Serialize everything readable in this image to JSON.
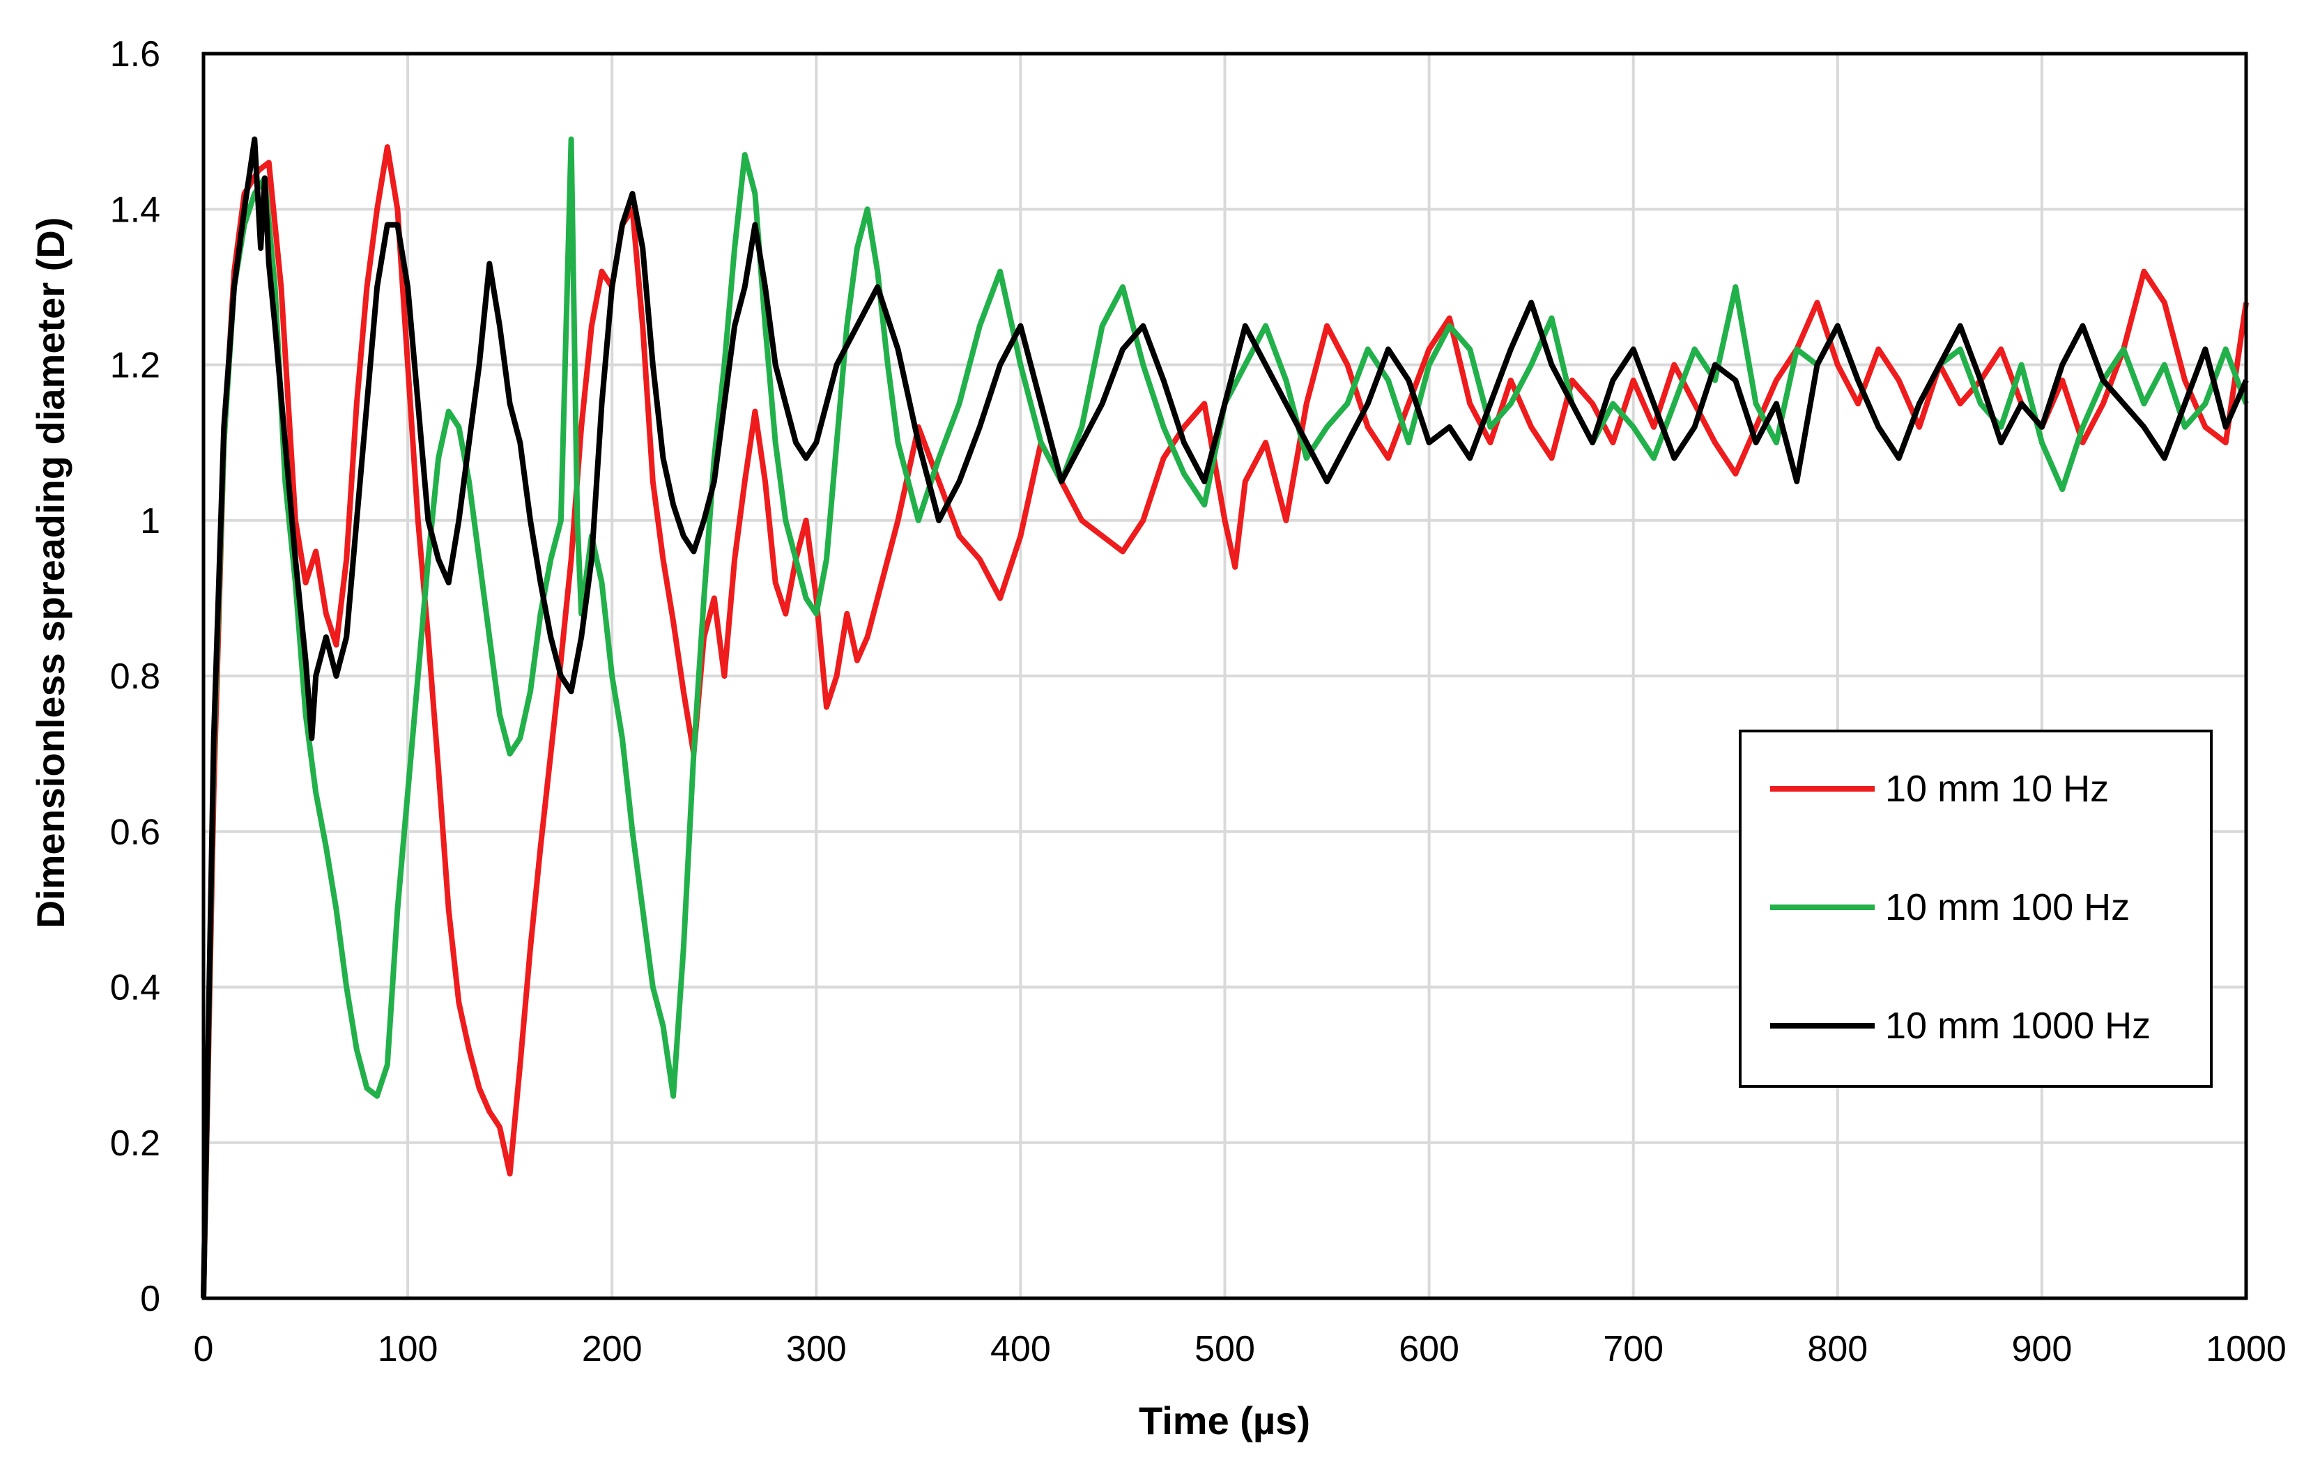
{
  "chart_data": {
    "type": "line",
    "title": "",
    "xlabel": "Time (µs)",
    "ylabel": "Dimensionless spreading diameter (D)",
    "xlim": [
      0,
      1000
    ],
    "ylim": [
      0,
      1.6
    ],
    "x_ticks": [
      0,
      100,
      200,
      300,
      400,
      500,
      600,
      700,
      800,
      900,
      1000
    ],
    "y_ticks": [
      0,
      0.2,
      0.4,
      0.6,
      0.8,
      1,
      1.2,
      1.4,
      1.6
    ],
    "x_tick_labels": [
      "0",
      "100",
      "200",
      "300",
      "400",
      "500",
      "600",
      "700",
      "800",
      "900",
      "1000"
    ],
    "y_tick_labels": [
      "0",
      "0.2",
      "0.4",
      "0.6",
      "0.8",
      "1",
      "1.2",
      "1.4",
      "1.6"
    ],
    "grid": true,
    "legend_position": "right-middle",
    "series": [
      {
        "name": "10 mm 10 Hz",
        "color": "#ee1c1c",
        "x": [
          0,
          5,
          10,
          15,
          20,
          27,
          32,
          38,
          45,
          50,
          55,
          60,
          65,
          70,
          75,
          80,
          85,
          90,
          95,
          100,
          105,
          110,
          115,
          120,
          125,
          130,
          135,
          140,
          145,
          150,
          155,
          160,
          165,
          170,
          175,
          180,
          185,
          190,
          195,
          200,
          205,
          210,
          215,
          220,
          225,
          230,
          235,
          240,
          245,
          250,
          255,
          260,
          265,
          270,
          275,
          280,
          285,
          290,
          295,
          300,
          305,
          310,
          315,
          320,
          325,
          330,
          340,
          350,
          360,
          370,
          380,
          390,
          400,
          410,
          420,
          430,
          440,
          450,
          460,
          470,
          480,
          490,
          500,
          505,
          510,
          520,
          530,
          540,
          550,
          560,
          570,
          580,
          590,
          600,
          610,
          620,
          630,
          640,
          650,
          660,
          670,
          680,
          690,
          700,
          710,
          720,
          730,
          740,
          750,
          760,
          770,
          780,
          790,
          800,
          810,
          820,
          830,
          840,
          850,
          860,
          870,
          880,
          890,
          900,
          910,
          920,
          930,
          940,
          950,
          960,
          970,
          980,
          990,
          1000
        ],
        "y": [
          0,
          0.65,
          1.1,
          1.32,
          1.42,
          1.45,
          1.46,
          1.3,
          1.0,
          0.92,
          0.96,
          0.88,
          0.84,
          0.95,
          1.15,
          1.3,
          1.4,
          1.48,
          1.4,
          1.2,
          1.0,
          0.85,
          0.68,
          0.5,
          0.38,
          0.32,
          0.27,
          0.24,
          0.22,
          0.16,
          0.3,
          0.45,
          0.58,
          0.7,
          0.82,
          0.95,
          1.12,
          1.25,
          1.32,
          1.3,
          1.38,
          1.4,
          1.25,
          1.05,
          0.95,
          0.87,
          0.78,
          0.7,
          0.85,
          0.9,
          0.8,
          0.95,
          1.05,
          1.14,
          1.05,
          0.92,
          0.88,
          0.95,
          1.0,
          0.9,
          0.76,
          0.8,
          0.88,
          0.82,
          0.85,
          0.9,
          1.0,
          1.12,
          1.05,
          0.98,
          0.95,
          0.9,
          0.98,
          1.1,
          1.05,
          1.0,
          0.98,
          0.96,
          1.0,
          1.08,
          1.12,
          1.15,
          1.0,
          0.94,
          1.05,
          1.1,
          1.0,
          1.15,
          1.25,
          1.2,
          1.12,
          1.08,
          1.15,
          1.22,
          1.26,
          1.15,
          1.1,
          1.18,
          1.12,
          1.08,
          1.18,
          1.15,
          1.1,
          1.18,
          1.12,
          1.2,
          1.15,
          1.1,
          1.06,
          1.12,
          1.18,
          1.22,
          1.28,
          1.2,
          1.15,
          1.22,
          1.18,
          1.12,
          1.2,
          1.15,
          1.18,
          1.22,
          1.15,
          1.12,
          1.18,
          1.1,
          1.15,
          1.22,
          1.32,
          1.28,
          1.18,
          1.12,
          1.1,
          1.28
        ]
      },
      {
        "name": "10 mm 100 Hz",
        "color": "#22b04a",
        "x": [
          0,
          5,
          10,
          15,
          20,
          25,
          30,
          35,
          40,
          45,
          50,
          55,
          60,
          65,
          70,
          75,
          80,
          85,
          90,
          95,
          100,
          105,
          110,
          115,
          120,
          125,
          130,
          135,
          140,
          145,
          150,
          155,
          160,
          165,
          170,
          175,
          180,
          183,
          185,
          190,
          195,
          200,
          205,
          210,
          215,
          220,
          225,
          230,
          235,
          240,
          245,
          250,
          255,
          260,
          265,
          270,
          275,
          280,
          285,
          290,
          295,
          300,
          305,
          310,
          315,
          320,
          325,
          330,
          335,
          340,
          345,
          350,
          360,
          370,
          380,
          390,
          400,
          410,
          420,
          430,
          440,
          450,
          460,
          470,
          480,
          490,
          500,
          510,
          520,
          530,
          540,
          550,
          560,
          570,
          580,
          590,
          600,
          610,
          620,
          630,
          640,
          650,
          660,
          670,
          680,
          690,
          700,
          710,
          720,
          730,
          740,
          750,
          760,
          770,
          780,
          790,
          800,
          810,
          820,
          830,
          840,
          850,
          860,
          870,
          880,
          890,
          900,
          910,
          920,
          930,
          940,
          950,
          960,
          970,
          980,
          990,
          1000
        ],
        "y": [
          0,
          0.7,
          1.1,
          1.3,
          1.38,
          1.42,
          1.44,
          1.3,
          1.05,
          0.92,
          0.75,
          0.65,
          0.58,
          0.5,
          0.4,
          0.32,
          0.27,
          0.26,
          0.3,
          0.5,
          0.65,
          0.8,
          0.95,
          1.08,
          1.14,
          1.12,
          1.05,
          0.95,
          0.85,
          0.75,
          0.7,
          0.72,
          0.78,
          0.88,
          0.95,
          1.0,
          1.49,
          1.0,
          0.88,
          0.98,
          0.92,
          0.8,
          0.72,
          0.6,
          0.5,
          0.4,
          0.35,
          0.26,
          0.45,
          0.7,
          0.9,
          1.08,
          1.2,
          1.35,
          1.47,
          1.42,
          1.25,
          1.1,
          1.0,
          0.95,
          0.9,
          0.88,
          0.95,
          1.1,
          1.25,
          1.35,
          1.4,
          1.32,
          1.2,
          1.1,
          1.05,
          1.0,
          1.08,
          1.15,
          1.25,
          1.32,
          1.2,
          1.1,
          1.05,
          1.12,
          1.25,
          1.3,
          1.2,
          1.12,
          1.06,
          1.02,
          1.15,
          1.2,
          1.25,
          1.18,
          1.08,
          1.12,
          1.15,
          1.22,
          1.18,
          1.1,
          1.2,
          1.25,
          1.22,
          1.12,
          1.15,
          1.2,
          1.26,
          1.15,
          1.1,
          1.15,
          1.12,
          1.08,
          1.15,
          1.22,
          1.18,
          1.3,
          1.15,
          1.1,
          1.22,
          1.2,
          1.25,
          1.18,
          1.12,
          1.08,
          1.15,
          1.2,
          1.22,
          1.15,
          1.12,
          1.2,
          1.1,
          1.04,
          1.12,
          1.18,
          1.22,
          1.15,
          1.2,
          1.12,
          1.15,
          1.22,
          1.15
        ]
      },
      {
        "name": "10 mm 1000 Hz",
        "color": "#000000",
        "x": [
          0,
          5,
          10,
          15,
          20,
          25,
          28,
          30,
          32,
          35,
          40,
          45,
          50,
          53,
          55,
          60,
          65,
          70,
          75,
          80,
          85,
          90,
          95,
          100,
          105,
          110,
          115,
          120,
          125,
          130,
          135,
          140,
          145,
          150,
          155,
          160,
          165,
          170,
          175,
          180,
          185,
          190,
          195,
          200,
          205,
          210,
          215,
          220,
          225,
          230,
          235,
          240,
          245,
          250,
          255,
          260,
          265,
          270,
          275,
          280,
          285,
          290,
          295,
          300,
          305,
          310,
          320,
          330,
          340,
          350,
          360,
          370,
          380,
          390,
          400,
          410,
          420,
          430,
          440,
          450,
          460,
          470,
          480,
          490,
          500,
          510,
          520,
          530,
          540,
          550,
          560,
          570,
          580,
          590,
          600,
          610,
          620,
          630,
          640,
          650,
          660,
          670,
          680,
          690,
          700,
          710,
          720,
          730,
          740,
          750,
          760,
          770,
          780,
          790,
          800,
          810,
          820,
          830,
          840,
          850,
          860,
          870,
          880,
          890,
          900,
          910,
          920,
          930,
          940,
          950,
          960,
          970,
          980,
          990,
          1000
        ],
        "y": [
          0,
          0.72,
          1.12,
          1.3,
          1.4,
          1.49,
          1.35,
          1.44,
          1.33,
          1.25,
          1.1,
          0.95,
          0.82,
          0.72,
          0.8,
          0.85,
          0.8,
          0.85,
          1.0,
          1.15,
          1.3,
          1.38,
          1.38,
          1.3,
          1.15,
          1.0,
          0.95,
          0.92,
          1.0,
          1.1,
          1.2,
          1.33,
          1.25,
          1.15,
          1.1,
          1.0,
          0.92,
          0.85,
          0.8,
          0.78,
          0.85,
          0.95,
          1.15,
          1.3,
          1.38,
          1.42,
          1.35,
          1.2,
          1.08,
          1.02,
          0.98,
          0.96,
          1.0,
          1.05,
          1.15,
          1.25,
          1.3,
          1.38,
          1.3,
          1.2,
          1.15,
          1.1,
          1.08,
          1.1,
          1.15,
          1.2,
          1.25,
          1.3,
          1.22,
          1.1,
          1.0,
          1.05,
          1.12,
          1.2,
          1.25,
          1.15,
          1.05,
          1.1,
          1.15,
          1.22,
          1.25,
          1.18,
          1.1,
          1.05,
          1.15,
          1.25,
          1.2,
          1.15,
          1.1,
          1.05,
          1.1,
          1.15,
          1.22,
          1.18,
          1.1,
          1.12,
          1.08,
          1.15,
          1.22,
          1.28,
          1.2,
          1.15,
          1.1,
          1.18,
          1.22,
          1.15,
          1.08,
          1.12,
          1.2,
          1.18,
          1.1,
          1.15,
          1.05,
          1.2,
          1.25,
          1.18,
          1.12,
          1.08,
          1.15,
          1.2,
          1.25,
          1.18,
          1.1,
          1.15,
          1.12,
          1.2,
          1.25,
          1.18,
          1.15,
          1.12,
          1.08,
          1.15,
          1.22,
          1.12,
          1.18
        ]
      }
    ]
  }
}
